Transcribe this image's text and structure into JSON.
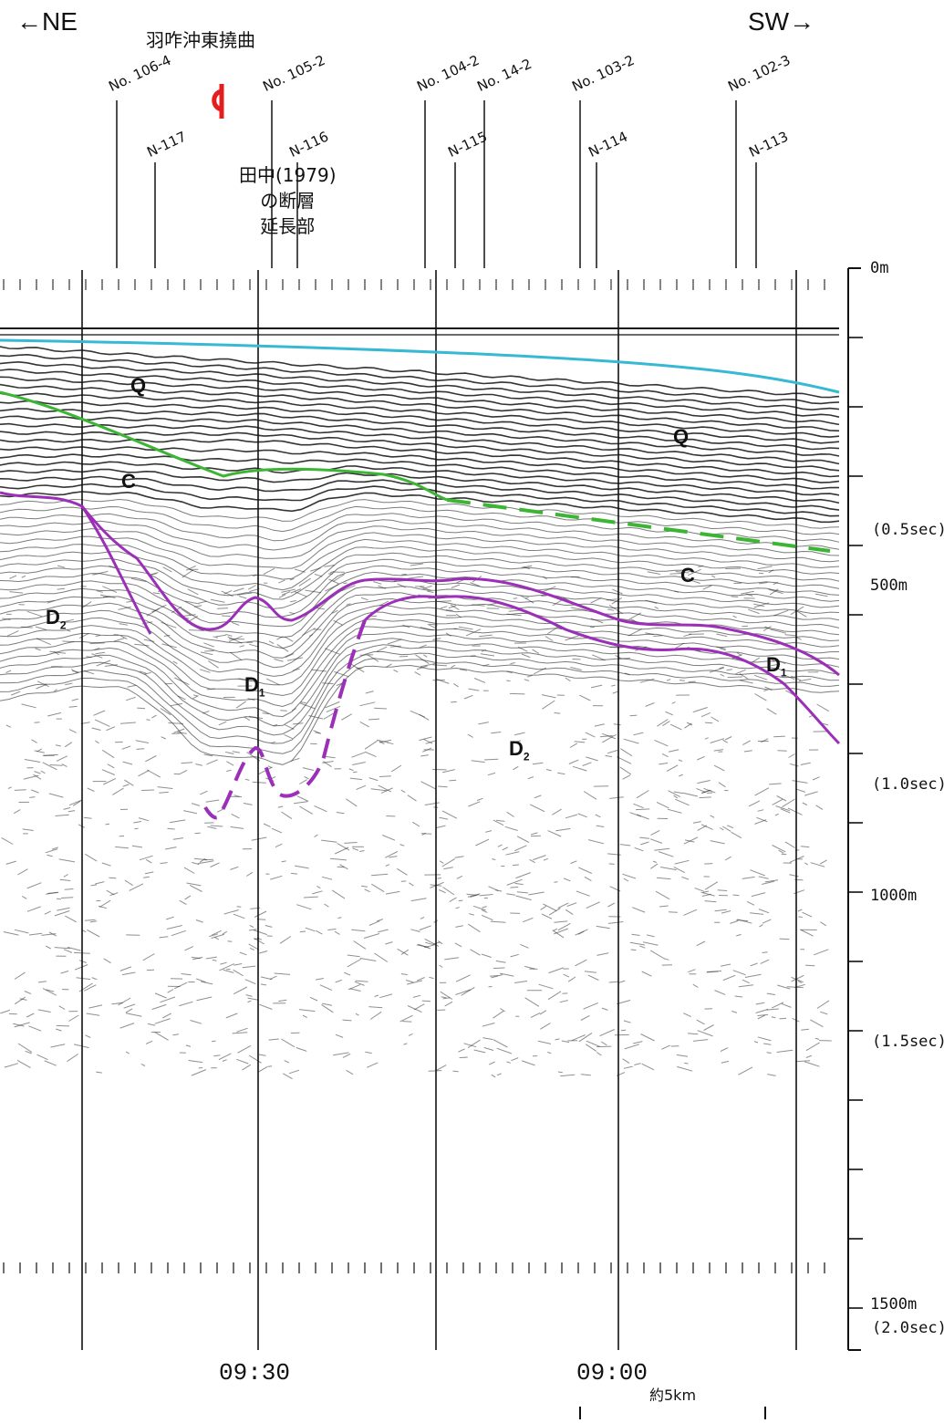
{
  "header": {
    "left_direction": "←NE",
    "right_direction": "SW→",
    "fault_name": "羽咋沖東撓曲",
    "reference_note": [
      "田中(1979)",
      "の断層",
      "延長部"
    ]
  },
  "survey_lines": [
    "No. 106-4",
    "N-117",
    "No. 105-2",
    "N-116",
    "No. 104-2",
    "N-115",
    "No. 14-2",
    "No. 103-2",
    "N-114",
    "No. 102-3",
    "N-113"
  ],
  "depth_axis": {
    "labels": [
      "0m",
      "(0.5sec)",
      "500m",
      "(1.0sec)",
      "1000m",
      "(1.5sec)",
      "1500m",
      "(2.0sec)"
    ]
  },
  "time_marks": [
    "09:30",
    "09:00"
  ],
  "units": [
    "Q",
    "C",
    "Q",
    "C",
    "D2",
    "D1",
    "D1",
    "D2"
  ],
  "scale_bar": {
    "label": "約5km"
  },
  "colors": {
    "fault_marker": "#e41e1e",
    "seafloor": "#37b8d4",
    "q_base": "#3cb534",
    "d1_top": "#9b2fb8"
  }
}
